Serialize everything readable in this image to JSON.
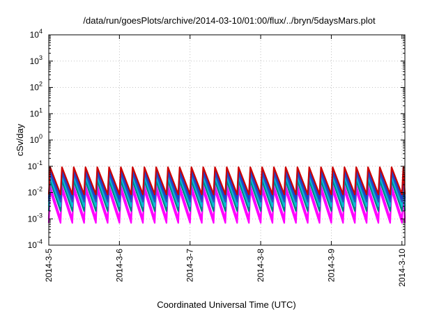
{
  "chart_data": {
    "type": "line",
    "title": "/data/run/goesPlots/archive/2014-03-10/01:00/flux/../bryn/5daysMars.plot",
    "xlabel": "Coordinated Universal Time (UTC)",
    "ylabel": "cSv/day",
    "yscale": "log",
    "ylim": [
      0.0001,
      10000
    ],
    "xlim": [
      "2014-03-05 00:00",
      "2014-03-10 01:00"
    ],
    "grid": true,
    "x_ticks": [
      "2014-3-5",
      "2014-3-6",
      "2014-3-7",
      "2014-3-8",
      "2014-3-9",
      "2014-3-10"
    ],
    "y_ticks": [
      {
        "base": "10",
        "exp": "-4",
        "value": 0.0001
      },
      {
        "base": "10",
        "exp": "-3",
        "value": 0.001
      },
      {
        "base": "10",
        "exp": "-2",
        "value": 0.01
      },
      {
        "base": "10",
        "exp": "-1",
        "value": 0.1
      },
      {
        "base": "10",
        "exp": "0",
        "value": 1
      },
      {
        "base": "10",
        "exp": "1",
        "value": 10
      },
      {
        "base": "10",
        "exp": "2",
        "value": 100
      },
      {
        "base": "10",
        "exp": "3",
        "value": 1000
      },
      {
        "base": "10",
        "exp": "4",
        "value": 10000
      }
    ],
    "sawtooth_period_hours": 4,
    "series": [
      {
        "color": "#ff00ff",
        "peak": 0.012,
        "trough": 0.0007
      },
      {
        "color": "#ff00ff",
        "peak": 0.018,
        "trough": 0.001
      },
      {
        "color": "#008080",
        "peak": 0.028,
        "trough": 0.002
      },
      {
        "color": "#00bcd4",
        "peak": 0.04,
        "trough": 0.003
      },
      {
        "color": "#2a52be",
        "peak": 0.055,
        "trough": 0.0045
      },
      {
        "color": "#1a3fd0",
        "peak": 0.07,
        "trough": 0.006
      },
      {
        "color": "#cc0000",
        "peak": 0.092,
        "trough": 0.0085
      }
    ]
  }
}
